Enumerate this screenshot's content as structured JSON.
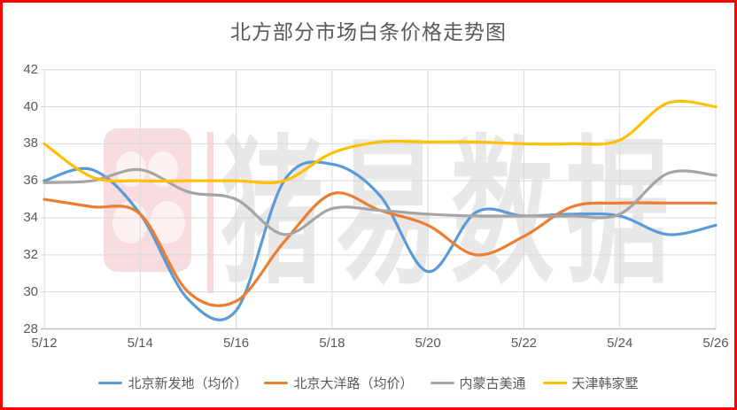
{
  "page_title": "北方部分市场白条价格走势图",
  "watermark": {
    "text": "猪易数据"
  },
  "colors": {
    "frame_border": "#FF0000",
    "title_text": "#595959",
    "axis_text": "#595959",
    "gridline": "#D9D9D9",
    "axis_line": "#BFBFBF",
    "watermark_text": "#E8E8E8",
    "watermark_logo": "#F8DCDF"
  },
  "chart_data": {
    "type": "line",
    "title": "北方部分市场白条价格走势图",
    "xlabel": "",
    "ylabel": "",
    "ylim": [
      28,
      42
    ],
    "y_ticks": [
      28,
      30,
      32,
      34,
      36,
      38,
      40,
      42
    ],
    "grid": true,
    "line_smoothing": true,
    "legend_position": "bottom",
    "categories": [
      "5/12",
      "5/13",
      "5/14",
      "5/15",
      "5/16",
      "5/17",
      "5/18",
      "5/19",
      "5/20",
      "5/21",
      "5/22",
      "5/23",
      "5/24",
      "5/25",
      "5/26"
    ],
    "x_tick_step": 2,
    "x_tick_labels": [
      "5/12",
      "5/14",
      "5/16",
      "5/18",
      "5/20",
      "5/22",
      "5/24",
      "5/26"
    ],
    "series": [
      {
        "name": "北京新发地（均价）",
        "color": "#5B9BD5",
        "values": [
          36.0,
          36.6,
          34.2,
          29.6,
          29.0,
          36.0,
          36.9,
          35.2,
          31.1,
          34.3,
          34.1,
          34.2,
          34.1,
          33.1,
          33.6
        ]
      },
      {
        "name": "北京大洋路（均价）",
        "color": "#ED7D31",
        "values": [
          35.0,
          34.6,
          34.2,
          30.0,
          29.5,
          32.7,
          35.3,
          34.4,
          33.6,
          32.0,
          33.0,
          34.6,
          34.8,
          34.8,
          34.8
        ]
      },
      {
        "name": "内蒙古美通",
        "color": "#A5A5A5",
        "values": [
          35.9,
          36.0,
          36.6,
          35.4,
          35.0,
          33.1,
          34.5,
          34.4,
          34.2,
          34.1,
          34.1,
          34.1,
          34.2,
          36.4,
          36.3
        ]
      },
      {
        "name": "天津韩家墅",
        "color": "#FFC000",
        "values": [
          38.0,
          36.2,
          36.0,
          36.0,
          36.0,
          36.0,
          37.5,
          38.1,
          38.1,
          38.1,
          38.0,
          38.0,
          38.2,
          40.2,
          40.0
        ]
      }
    ]
  }
}
